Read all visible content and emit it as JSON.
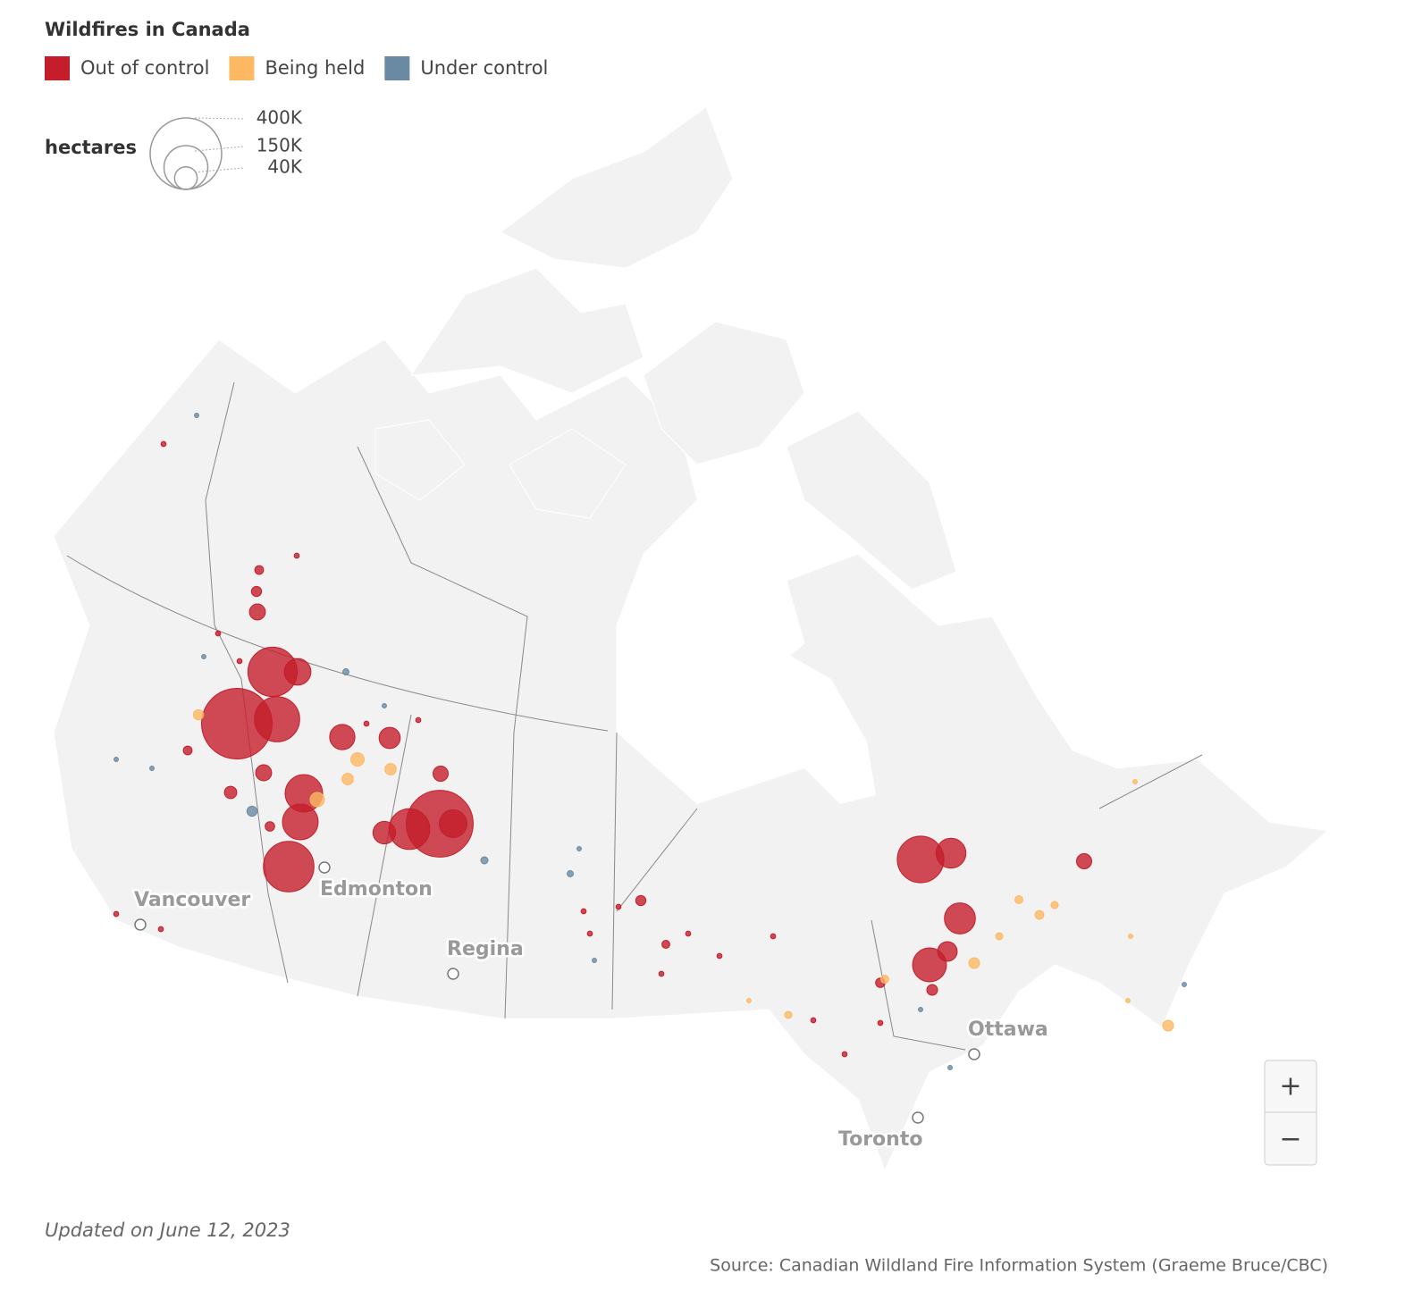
{
  "title": "Wildfires in Canada",
  "fire_status": [
    {
      "name": "Out of control",
      "color": "#c41e2a",
      "fires": [
        390000,
        350000,
        200000,
        190000,
        170000,
        160000,
        110000,
        100000,
        130000,
        70000,
        75000,
        90000,
        55000,
        50000,
        35000,
        40000,
        60000,
        20000,
        20000,
        18000,
        18000,
        30000,
        12000,
        8000,
        6000,
        7000,
        8000,
        5000,
        7000,
        9000,
        6000,
        2000,
        2000,
        2000,
        2000,
        2000,
        2000,
        2000,
        2000,
        2000,
        2000,
        2000,
        2000,
        2000,
        2000,
        2000,
        2000,
        2000,
        2000
      ]
    },
    {
      "name": "Being held",
      "color": "#fdb863",
      "fires": [
        8000,
        16000,
        10000,
        10000,
        14000,
        9000,
        9000,
        6000,
        5000,
        4000,
        5000,
        4000,
        4000,
        1500,
        1500,
        1500,
        1500
      ]
    },
    {
      "name": "Under control",
      "color": "#6a8aa3",
      "fires": [
        8000,
        3000,
        4000,
        3000,
        1500,
        1500,
        1500,
        1500,
        1500,
        1500,
        1500,
        1500,
        1500,
        1500
      ]
    }
  ],
  "size_legend": {
    "label": "hectares",
    "ticks": [
      {
        "value": 400000,
        "label": "400K"
      },
      {
        "value": 150000,
        "label": "150K"
      },
      {
        "value": 40000,
        "label": "40K"
      }
    ]
  },
  "cities": [
    "Vancouver",
    "Edmonton",
    "Regina",
    "Ottawa",
    "Toronto"
  ],
  "zoom": [
    "+",
    "−"
  ],
  "updated": "Updated on June 12, 2023",
  "source": "Source: Canadian Wildland Fire Information System (Graeme Bruce/CBC)"
}
